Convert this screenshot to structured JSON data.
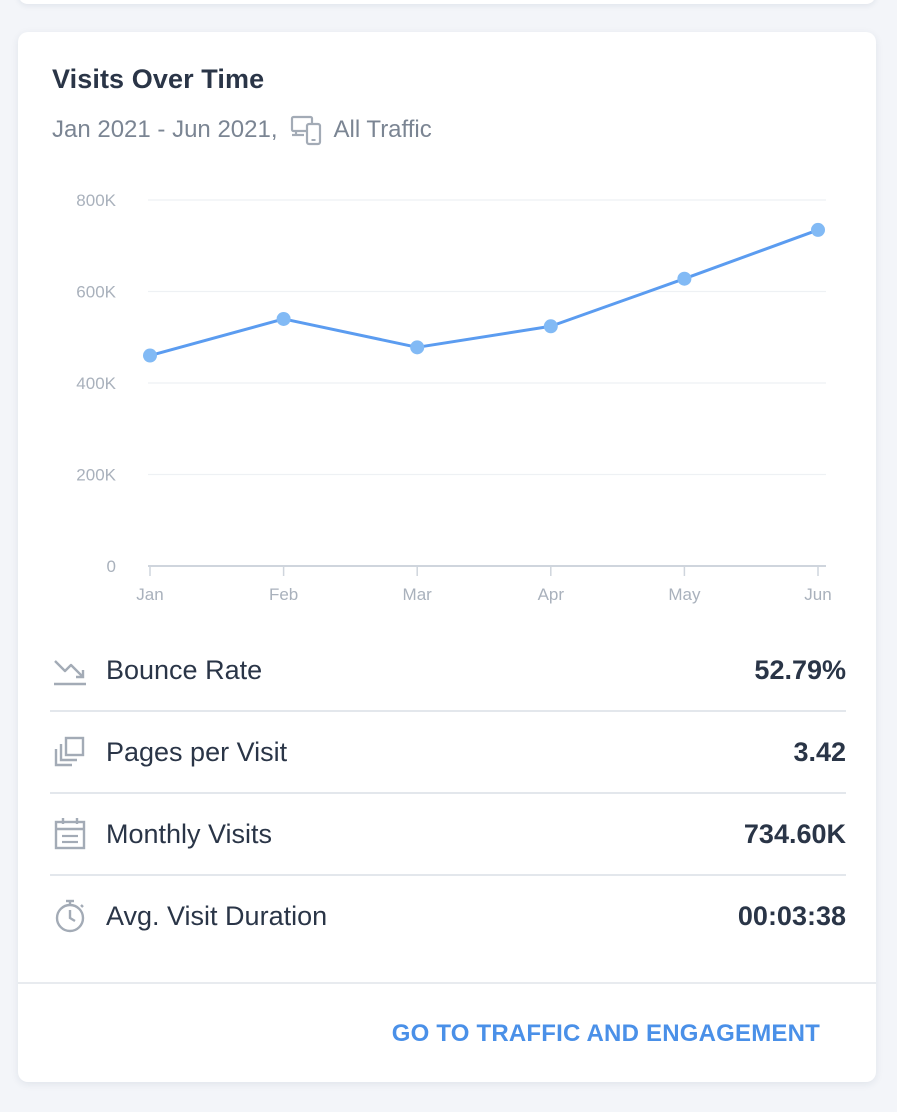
{
  "card": {
    "title": "Visits Over Time",
    "date_range": "Jan 2021 - Jun 2021,",
    "traffic_icon": "devices-icon",
    "traffic_label": "All Traffic"
  },
  "chart_data": {
    "type": "line",
    "title": "",
    "xlabel": "",
    "ylabel": "",
    "categories": [
      "Jan",
      "Feb",
      "Mar",
      "Apr",
      "May",
      "Jun"
    ],
    "values": [
      460000,
      540000,
      478000,
      524000,
      628000,
      734600
    ],
    "ylim": [
      0,
      800000
    ],
    "y_ticks": [
      0,
      200000,
      400000,
      600000,
      800000
    ],
    "y_tick_labels": [
      "0",
      "200K",
      "400K",
      "600K",
      "800K"
    ],
    "grid": true,
    "line_color": "#5b9cf0",
    "point_color": "#82baf5"
  },
  "metrics": [
    {
      "icon": "trend-down-icon",
      "label": "Bounce Rate",
      "value": "52.79%"
    },
    {
      "icon": "pages-icon",
      "label": "Pages per Visit",
      "value": "3.42"
    },
    {
      "icon": "calendar-icon",
      "label": "Monthly Visits",
      "value": "734.60K"
    },
    {
      "icon": "stopwatch-icon",
      "label": "Avg. Visit Duration",
      "value": "00:03:38"
    }
  ],
  "footer": {
    "link_label": "GO TO TRAFFIC AND ENGAGEMENT"
  },
  "colors": {
    "accent": "#4a90e8",
    "text_primary": "#2a3547",
    "text_secondary": "#7b8593",
    "axis_text": "#a9b1bc",
    "icon_gray": "#a3abb6"
  }
}
